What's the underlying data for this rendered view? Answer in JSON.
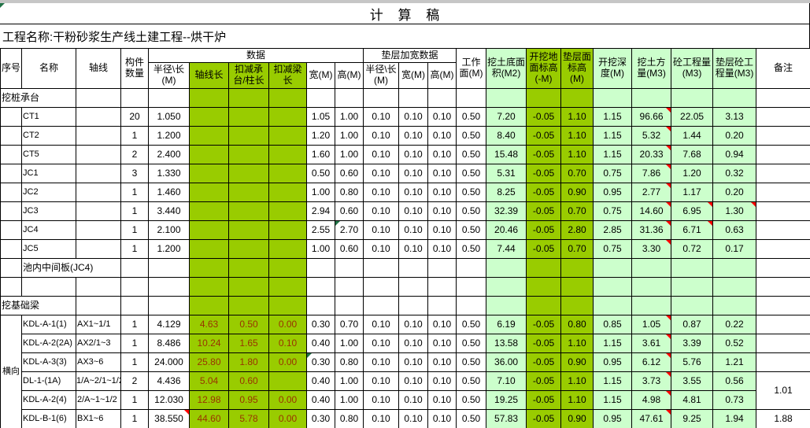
{
  "title": "计 算 稿",
  "project_label": "工程名称:干粉砂浆生产线土建工程--烘干炉",
  "colors": {
    "header_bright_green": "#99cc00",
    "cell_light_green": "#ccffcc",
    "grid_line": "#000000",
    "green_column_text": "#993300",
    "comment_marker_red": "#ff0000",
    "error_marker_green": "#217346",
    "top_bar_gray": "#c6c6c6"
  },
  "header": {
    "seq": "序号",
    "name": "名称",
    "axis": "轴线",
    "count": "构件数量",
    "data_group": "数据",
    "radius": "半径\\长(M)",
    "axis_len": "轴线长",
    "deduct_cap": "扣减承台/柱长",
    "deduct_beam": "扣减梁长",
    "width": "宽(M)",
    "height": "高(M)",
    "cushion_group": "垫层加宽数据",
    "c_radius": "半径\\长(M)",
    "c_width": "宽(M)",
    "c_height": "高(M)",
    "work_face": "工作面(M)",
    "dig_area": "挖土底面积(M2)",
    "ground_elev": "开挖地面标高(-M)",
    "cushion_elev": "垫层面标高(M)",
    "dig_depth": "开挖深度(M)",
    "earth_vol": "挖土方量(M3)",
    "concrete_vol": "砼工程量(M3)",
    "cushion_concrete_vol": "垫层砼工程量(M3)",
    "remark": "备注"
  },
  "rows": [
    {
      "cells": [
        {
          "t": "挖桩承台",
          "cs": 2,
          "a": "l"
        },
        {},
        {},
        {},
        {},
        {},
        {},
        {},
        {},
        {},
        {},
        {},
        {},
        {},
        {},
        {},
        {},
        {},
        {},
        {},
        {}
      ]
    },
    {
      "cells": [
        {},
        {
          "t": "CT1"
        },
        {},
        {
          "t": "20"
        },
        {
          "t": "1.050"
        },
        {},
        {},
        {},
        {
          "t": "1.05"
        },
        {
          "t": "1.00"
        },
        {
          "t": "0.10"
        },
        {
          "t": "0.10"
        },
        {
          "t": "0.10"
        },
        {
          "t": "0.50"
        },
        {
          "t": "7.20"
        },
        {
          "t": "-0.05"
        },
        {
          "t": "1.10"
        },
        {
          "t": "1.15"
        },
        {
          "t": "96.66",
          "m": "red"
        },
        {
          "t": "22.05"
        },
        {
          "t": "3.13"
        },
        {}
      ]
    },
    {
      "cells": [
        {},
        {
          "t": "CT2"
        },
        {},
        {
          "t": "1"
        },
        {
          "t": "1.200"
        },
        {},
        {},
        {},
        {
          "t": "1.20"
        },
        {
          "t": "1.00"
        },
        {
          "t": "0.10"
        },
        {
          "t": "0.10"
        },
        {
          "t": "0.10"
        },
        {
          "t": "0.50"
        },
        {
          "t": "8.40"
        },
        {
          "t": "-0.05"
        },
        {
          "t": "1.10"
        },
        {
          "t": "1.15"
        },
        {
          "t": "5.32",
          "m": "red"
        },
        {
          "t": "1.44"
        },
        {
          "t": "0.20"
        },
        {}
      ]
    },
    {
      "cells": [
        {},
        {
          "t": "CT5"
        },
        {},
        {
          "t": "2"
        },
        {
          "t": "2.400"
        },
        {},
        {},
        {},
        {
          "t": "1.60"
        },
        {
          "t": "1.00"
        },
        {
          "t": "0.10"
        },
        {
          "t": "0.10"
        },
        {
          "t": "0.10"
        },
        {
          "t": "0.50"
        },
        {
          "t": "15.48"
        },
        {
          "t": "-0.05"
        },
        {
          "t": "1.10"
        },
        {
          "t": "1.15"
        },
        {
          "t": "20.33",
          "m": "red"
        },
        {
          "t": "7.68"
        },
        {
          "t": "0.94"
        },
        {}
      ]
    },
    {
      "cells": [
        {},
        {
          "t": "JC1"
        },
        {},
        {
          "t": "3"
        },
        {
          "t": "1.330"
        },
        {},
        {},
        {},
        {
          "t": "0.50"
        },
        {
          "t": "0.60"
        },
        {
          "t": "0.10"
        },
        {
          "t": "0.10"
        },
        {
          "t": "0.10"
        },
        {
          "t": "0.50"
        },
        {
          "t": "5.31"
        },
        {
          "t": "-0.05"
        },
        {
          "t": "0.70"
        },
        {
          "t": "0.75"
        },
        {
          "t": "7.86",
          "m": "red"
        },
        {
          "t": "1.20"
        },
        {
          "t": "0.32"
        },
        {}
      ]
    },
    {
      "cells": [
        {},
        {
          "t": "JC2"
        },
        {},
        {
          "t": "1"
        },
        {
          "t": "1.460"
        },
        {},
        {},
        {},
        {
          "t": "1.00"
        },
        {
          "t": "0.80"
        },
        {
          "t": "0.10"
        },
        {
          "t": "0.10"
        },
        {
          "t": "0.10"
        },
        {
          "t": "0.50"
        },
        {
          "t": "8.25"
        },
        {
          "t": "-0.05"
        },
        {
          "t": "0.90"
        },
        {
          "t": "0.95"
        },
        {
          "t": "2.77",
          "m": "red"
        },
        {
          "t": "1.17"
        },
        {
          "t": "0.20"
        },
        {}
      ]
    },
    {
      "cells": [
        {},
        {
          "t": "JC3"
        },
        {},
        {
          "t": "1"
        },
        {
          "t": "3.440"
        },
        {},
        {},
        {},
        {
          "t": "2.94"
        },
        {
          "t": "0.60"
        },
        {
          "t": "0.10"
        },
        {
          "t": "0.10"
        },
        {
          "t": "0.10"
        },
        {
          "t": "0.50"
        },
        {
          "t": "32.39"
        },
        {
          "t": "-0.05"
        },
        {
          "t": "0.70"
        },
        {
          "t": "0.75"
        },
        {
          "t": "14.60",
          "m": "red"
        },
        {
          "t": "6.95",
          "m": "red"
        },
        {
          "t": "1.30",
          "m": "red"
        },
        {}
      ]
    },
    {
      "cells": [
        {},
        {
          "t": "JC4"
        },
        {},
        {
          "t": "1"
        },
        {
          "t": "2.100"
        },
        {},
        {},
        {},
        {
          "t": "2.55"
        },
        {
          "t": "2.70",
          "m": "green"
        },
        {
          "t": "0.10"
        },
        {
          "t": "0.10"
        },
        {
          "t": "0.10"
        },
        {
          "t": "0.50"
        },
        {
          "t": "20.46"
        },
        {
          "t": "-0.05"
        },
        {
          "t": "2.80"
        },
        {
          "t": "2.85"
        },
        {
          "t": "31.36",
          "m": "red"
        },
        {
          "t": "6.71",
          "m": "red"
        },
        {
          "t": "0.63"
        },
        {}
      ]
    },
    {
      "cells": [
        {},
        {
          "t": "JC5"
        },
        {},
        {
          "t": "1"
        },
        {
          "t": "1.200"
        },
        {},
        {},
        {},
        {
          "t": "1.00"
        },
        {
          "t": "0.60"
        },
        {
          "t": "0.10"
        },
        {
          "t": "0.10"
        },
        {
          "t": "0.10"
        },
        {
          "t": "0.50"
        },
        {
          "t": "7.44"
        },
        {
          "t": "-0.05"
        },
        {
          "t": "0.70"
        },
        {
          "t": "0.75"
        },
        {
          "t": "3.30",
          "m": "red"
        },
        {
          "t": "0.72"
        },
        {
          "t": "0.17"
        },
        {}
      ]
    },
    {
      "cells": [
        {},
        {
          "t": "池内中间板(JC4)",
          "cs": 2,
          "a": "l"
        },
        {},
        {},
        {},
        {},
        {},
        {},
        {},
        {},
        {},
        {},
        {},
        {},
        {},
        {},
        {},
        {},
        {},
        {},
        {}
      ]
    },
    {
      "cells": [
        {},
        {},
        {},
        {},
        {},
        {},
        {},
        {},
        {},
        {},
        {},
        {},
        {},
        {},
        {},
        {},
        {},
        {},
        {},
        {},
        {},
        {}
      ]
    },
    {
      "cells": [
        {
          "t": "挖基础梁",
          "cs": 2,
          "a": "l"
        },
        {},
        {},
        {},
        {},
        {},
        {},
        {},
        {},
        {},
        {},
        {},
        {},
        {},
        {},
        {},
        {},
        {},
        {},
        {},
        {}
      ]
    },
    {
      "cells": [
        {
          "t": "横向",
          "rs": 6,
          "cls": "hx"
        },
        {
          "t": "KDL-A-1(1)"
        },
        {
          "t": "AX1~1/1"
        },
        {
          "t": "1"
        },
        {
          "t": "4.129"
        },
        {
          "t": "4.63"
        },
        {
          "t": "0.50"
        },
        {
          "t": "0.00"
        },
        {
          "t": "0.30"
        },
        {
          "t": "0.70"
        },
        {
          "t": "0.10"
        },
        {
          "t": "0.10"
        },
        {
          "t": "0.10"
        },
        {
          "t": "0.50"
        },
        {
          "t": "6.19"
        },
        {
          "t": "-0.05"
        },
        {
          "t": "0.80"
        },
        {
          "t": "0.85"
        },
        {
          "t": "1.05",
          "m": "red"
        },
        {
          "t": "0.87"
        },
        {
          "t": "0.22"
        },
        {}
      ]
    },
    {
      "cells": [
        {
          "t": "KDL-A-2(2A)"
        },
        {
          "t": "AX2/1~3"
        },
        {
          "t": "1"
        },
        {
          "t": "8.486"
        },
        {
          "t": "10.24"
        },
        {
          "t": "1.65"
        },
        {
          "t": "0.10"
        },
        {
          "t": "0.40"
        },
        {
          "t": "1.00"
        },
        {
          "t": "0.10"
        },
        {
          "t": "0.10"
        },
        {
          "t": "0.10"
        },
        {
          "t": "0.50"
        },
        {
          "t": "13.58"
        },
        {
          "t": "-0.05"
        },
        {
          "t": "1.10"
        },
        {
          "t": "1.15"
        },
        {
          "t": "3.61",
          "m": "red"
        },
        {
          "t": "3.39"
        },
        {
          "t": "0.52"
        },
        {}
      ]
    },
    {
      "cells": [
        {
          "t": "KDL-A-3(3)"
        },
        {
          "t": "AX3~6"
        },
        {
          "t": "1"
        },
        {
          "t": "24.000"
        },
        {
          "t": "25.80"
        },
        {
          "t": "1.80"
        },
        {
          "t": "0.00"
        },
        {
          "t": "0.30",
          "m": "green"
        },
        {
          "t": "0.80"
        },
        {
          "t": "0.10"
        },
        {
          "t": "0.10"
        },
        {
          "t": "0.10"
        },
        {
          "t": "0.50"
        },
        {
          "t": "36.00"
        },
        {
          "t": "-0.05"
        },
        {
          "t": "0.90"
        },
        {
          "t": "0.95"
        },
        {
          "t": "6.12",
          "m": "red"
        },
        {
          "t": "5.76"
        },
        {
          "t": "1.21"
        },
        {}
      ]
    },
    {
      "cells": [
        {
          "t": "DL-1-(1A)"
        },
        {
          "t": "1/A~2/1~1/2",
          "cls": "wrap"
        },
        {
          "t": "2"
        },
        {
          "t": "4.436"
        },
        {
          "t": "5.04"
        },
        {
          "t": "0.60"
        },
        {},
        {
          "t": "0.40"
        },
        {
          "t": "1.00"
        },
        {
          "t": "0.10"
        },
        {
          "t": "0.10"
        },
        {
          "t": "0.10"
        },
        {
          "t": "0.50"
        },
        {
          "t": "7.10"
        },
        {
          "t": "-0.05"
        },
        {
          "t": "1.10"
        },
        {
          "t": "1.15"
        },
        {
          "t": "3.73",
          "m": "red"
        },
        {
          "t": "3.55"
        },
        {
          "t": "0.56"
        },
        {
          "t": "1.01",
          "rs": 2
        }
      ]
    },
    {
      "cells": [
        {
          "t": "KDL-A-2(4)"
        },
        {
          "t": "2/A~1~1/2"
        },
        {
          "t": "1"
        },
        {
          "t": "12.030"
        },
        {
          "t": "12.98"
        },
        {
          "t": "0.95"
        },
        {
          "t": "0.00"
        },
        {
          "t": "0.40"
        },
        {
          "t": "1.00"
        },
        {
          "t": "0.10"
        },
        {
          "t": "0.10"
        },
        {
          "t": "0.10"
        },
        {
          "t": "0.50"
        },
        {
          "t": "19.25"
        },
        {
          "t": "-0.05"
        },
        {
          "t": "1.10"
        },
        {
          "t": "1.15"
        },
        {
          "t": "4.98",
          "m": "red"
        },
        {
          "t": "4.81"
        },
        {
          "t": "0.73"
        }
      ]
    },
    {
      "cells": [
        {
          "t": "KDL-B-1(6)"
        },
        {
          "t": "BX1~6"
        },
        {
          "t": "1"
        },
        {
          "t": "38.550",
          "m": "red"
        },
        {
          "t": "44.60"
        },
        {
          "t": "5.78"
        },
        {
          "t": "0.00"
        },
        {
          "t": "0.30"
        },
        {
          "t": "0.80"
        },
        {
          "t": "0.10"
        },
        {
          "t": "0.10"
        },
        {
          "t": "0.10"
        },
        {
          "t": "0.50"
        },
        {
          "t": "57.83"
        },
        {
          "t": "-0.05"
        },
        {
          "t": "0.90"
        },
        {
          "t": "0.95"
        },
        {
          "t": "47.61",
          "m": "red"
        },
        {
          "t": "9.25"
        },
        {
          "t": "1.94"
        },
        {
          "t": "1.88"
        }
      ]
    }
  ]
}
